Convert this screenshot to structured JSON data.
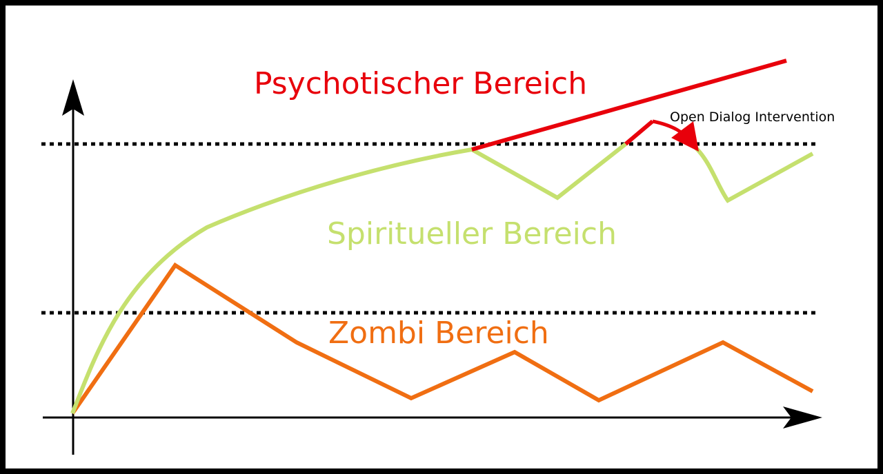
{
  "labels": {
    "psychotic": "Psychotischer Bereich",
    "spiritual": "Spiritueller Bereich",
    "zombie": "Zombi Bereich",
    "intervention": "Open Dialog Intervention"
  },
  "colors": {
    "psychotic": "#e8000b",
    "spiritual": "#c5e06e",
    "zombie": "#f06e12",
    "frame": "#000000",
    "threshold": "#000000"
  }
}
